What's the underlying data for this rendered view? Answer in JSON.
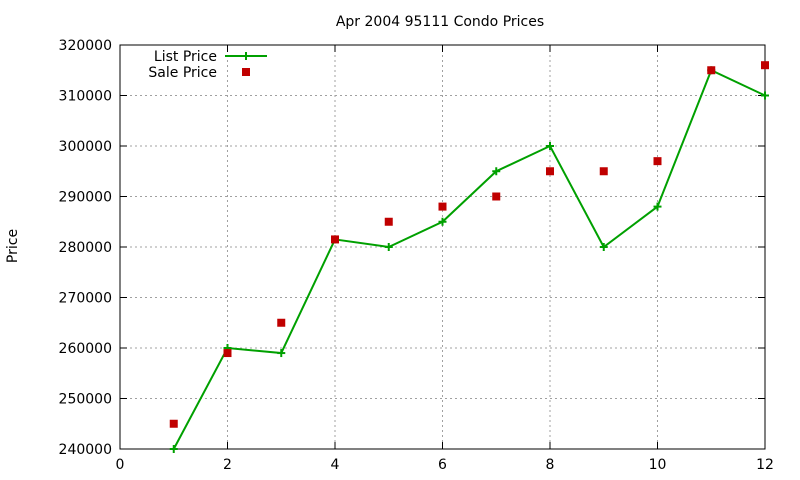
{
  "chart_data": {
    "type": "line",
    "title": "Apr 2004 95111 Condo Prices",
    "xlabel": "",
    "ylabel": "Price",
    "xlim": [
      0,
      12
    ],
    "ylim": [
      240000,
      320000
    ],
    "x_ticks": [
      0,
      2,
      4,
      6,
      8,
      10,
      12
    ],
    "y_ticks": [
      240000,
      250000,
      260000,
      270000,
      280000,
      290000,
      300000,
      310000,
      320000
    ],
    "grid": true,
    "legend_position": "top-left",
    "series": [
      {
        "name": "List Price",
        "style": "line+cross",
        "color": "#00a000",
        "x": [
          1,
          2,
          3,
          4,
          5,
          6,
          7,
          8,
          9,
          10,
          11,
          12
        ],
        "y": [
          240000,
          260000,
          259000,
          281500,
          280000,
          285000,
          295000,
          300000,
          280000,
          288000,
          315000,
          310000
        ]
      },
      {
        "name": "Sale Price",
        "style": "square",
        "color": "#c00000",
        "x": [
          1,
          2,
          3,
          4,
          5,
          6,
          7,
          8,
          9,
          10,
          11,
          12
        ],
        "y": [
          245000,
          259000,
          265000,
          281500,
          285000,
          288000,
          290000,
          295000,
          295000,
          297000,
          315000,
          316000
        ]
      }
    ]
  }
}
